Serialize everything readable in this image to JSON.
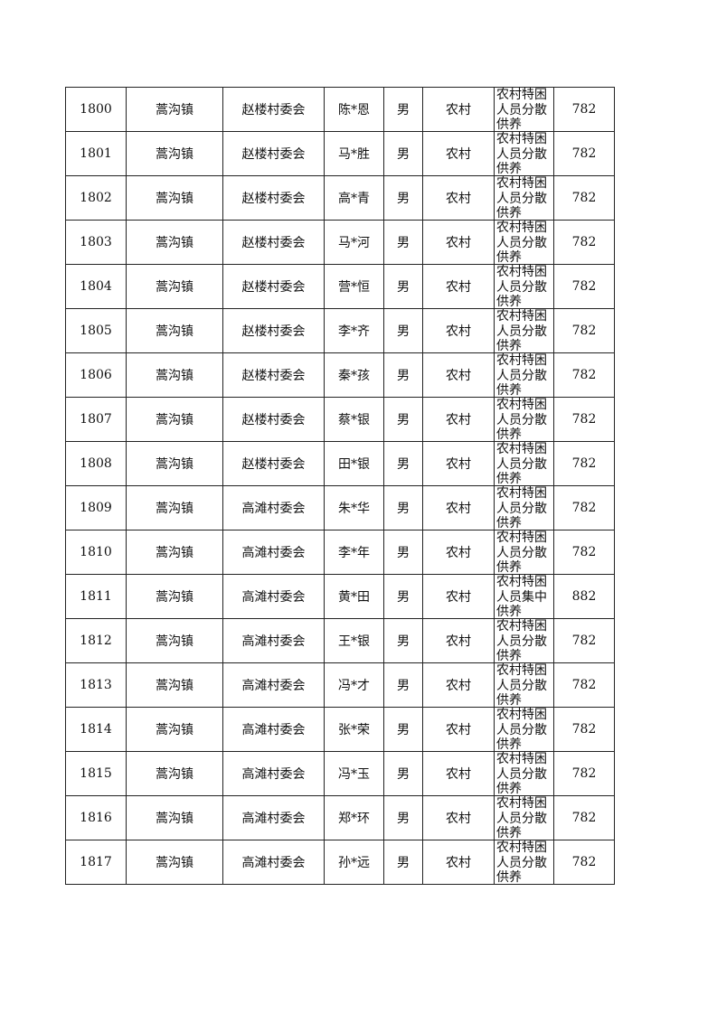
{
  "rows": [
    {
      "no": "1800",
      "town": "蒿沟镇",
      "village": "赵楼村委会",
      "name": "陈*恩",
      "gender": "男",
      "area": "农村",
      "type": "农村特困人员分散供养",
      "amount": "782"
    },
    {
      "no": "1801",
      "town": "蒿沟镇",
      "village": "赵楼村委会",
      "name": "马*胜",
      "gender": "男",
      "area": "农村",
      "type": "农村特困人员分散供养",
      "amount": "782"
    },
    {
      "no": "1802",
      "town": "蒿沟镇",
      "village": "赵楼村委会",
      "name": "高*青",
      "gender": "男",
      "area": "农村",
      "type": "农村特困人员分散供养",
      "amount": "782"
    },
    {
      "no": "1803",
      "town": "蒿沟镇",
      "village": "赵楼村委会",
      "name": "马*河",
      "gender": "男",
      "area": "农村",
      "type": "农村特困人员分散供养",
      "amount": "782"
    },
    {
      "no": "1804",
      "town": "蒿沟镇",
      "village": "赵楼村委会",
      "name": "营*恒",
      "gender": "男",
      "area": "农村",
      "type": "农村特困人员分散供养",
      "amount": "782"
    },
    {
      "no": "1805",
      "town": "蒿沟镇",
      "village": "赵楼村委会",
      "name": "李*齐",
      "gender": "男",
      "area": "农村",
      "type": "农村特困人员分散供养",
      "amount": "782"
    },
    {
      "no": "1806",
      "town": "蒿沟镇",
      "village": "赵楼村委会",
      "name": "秦*孩",
      "gender": "男",
      "area": "农村",
      "type": "农村特困人员分散供养",
      "amount": "782"
    },
    {
      "no": "1807",
      "town": "蒿沟镇",
      "village": "赵楼村委会",
      "name": "蔡*银",
      "gender": "男",
      "area": "农村",
      "type": "农村特困人员分散供养",
      "amount": "782"
    },
    {
      "no": "1808",
      "town": "蒿沟镇",
      "village": "赵楼村委会",
      "name": "田*银",
      "gender": "男",
      "area": "农村",
      "type": "农村特困人员分散供养",
      "amount": "782"
    },
    {
      "no": "1809",
      "town": "蒿沟镇",
      "village": "高滩村委会",
      "name": "朱*华",
      "gender": "男",
      "area": "农村",
      "type": "农村特困人员分散供养",
      "amount": "782"
    },
    {
      "no": "1810",
      "town": "蒿沟镇",
      "village": "高滩村委会",
      "name": "李*年",
      "gender": "男",
      "area": "农村",
      "type": "农村特困人员分散供养",
      "amount": "782"
    },
    {
      "no": "1811",
      "town": "蒿沟镇",
      "village": "高滩村委会",
      "name": "黄*田",
      "gender": "男",
      "area": "农村",
      "type": "农村特困人员集中供养",
      "amount": "882"
    },
    {
      "no": "1812",
      "town": "蒿沟镇",
      "village": "高滩村委会",
      "name": "王*银",
      "gender": "男",
      "area": "农村",
      "type": "农村特困人员分散供养",
      "amount": "782"
    },
    {
      "no": "1813",
      "town": "蒿沟镇",
      "village": "高滩村委会",
      "name": "冯*才",
      "gender": "男",
      "area": "农村",
      "type": "农村特困人员分散供养",
      "amount": "782"
    },
    {
      "no": "1814",
      "town": "蒿沟镇",
      "village": "高滩村委会",
      "name": "张*荣",
      "gender": "男",
      "area": "农村",
      "type": "农村特困人员分散供养",
      "amount": "782"
    },
    {
      "no": "1815",
      "town": "蒿沟镇",
      "village": "高滩村委会",
      "name": "冯*玉",
      "gender": "男",
      "area": "农村",
      "type": "农村特困人员分散供养",
      "amount": "782"
    },
    {
      "no": "1816",
      "town": "蒿沟镇",
      "village": "高滩村委会",
      "name": "郑*环",
      "gender": "男",
      "area": "农村",
      "type": "农村特困人员分散供养",
      "amount": "782"
    },
    {
      "no": "1817",
      "town": "蒿沟镇",
      "village": "高滩村委会",
      "name": "孙*远",
      "gender": "男",
      "area": "农村",
      "type": "农村特困人员分散供养",
      "amount": "782"
    }
  ]
}
